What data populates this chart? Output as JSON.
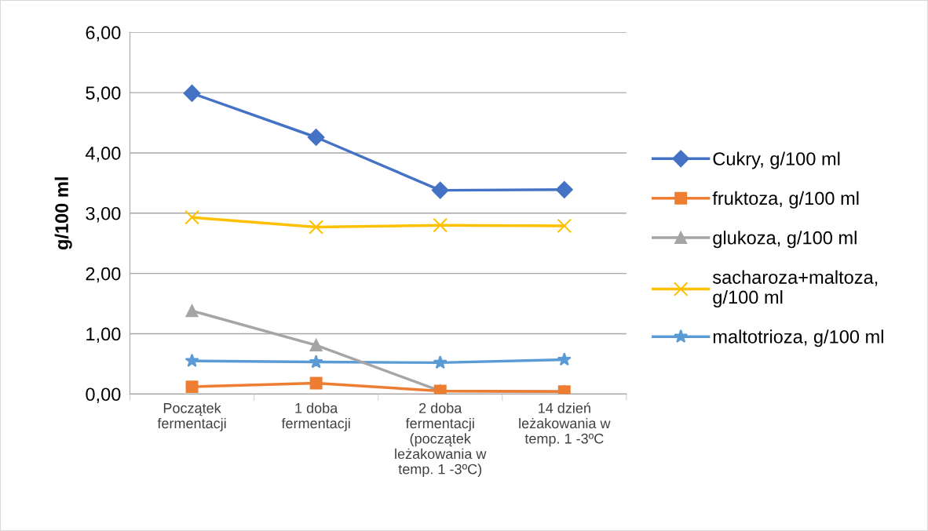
{
  "chart_data": {
    "type": "line",
    "ylabel": "g/100 ml",
    "categories": [
      "Początek\nfermentacji",
      "1 doba\nfermentacji",
      "2 doba\nfermentacji\n(początek\nleżakowania w\ntemp. 1 -3ºC)",
      "14 dzień\nleżakowania w\ntemp. 1 -3ºC"
    ],
    "series": [
      {
        "name": "Cukry, g/100 ml",
        "color": "#4472c4",
        "marker": "diamond",
        "values": [
          4.99,
          4.26,
          3.38,
          3.39
        ]
      },
      {
        "name": "fruktoza, g/100 ml",
        "color": "#ed7d31",
        "marker": "square",
        "values": [
          0.12,
          0.18,
          0.05,
          0.04
        ]
      },
      {
        "name": "glukoza, g/100 ml",
        "color": "#a5a5a5",
        "marker": "triangle",
        "values": [
          1.38,
          0.81,
          0.05,
          0.04
        ]
      },
      {
        "name": "sacharoza+maltoza,\ng/100 ml",
        "color": "#ffc000",
        "marker": "cross",
        "values": [
          2.93,
          2.77,
          2.8,
          2.79
        ]
      },
      {
        "name": "maltotrioza, g/100 ml",
        "color": "#5b9bd5",
        "marker": "star",
        "values": [
          0.55,
          0.53,
          0.52,
          0.57
        ]
      }
    ],
    "ylim": [
      0,
      6
    ],
    "yticks": [
      {
        "value": 0,
        "label": "0,00"
      },
      {
        "value": 1,
        "label": "1,00"
      },
      {
        "value": 2,
        "label": "2,00"
      },
      {
        "value": 3,
        "label": "3,00"
      },
      {
        "value": 4,
        "label": "4,00"
      },
      {
        "value": 5,
        "label": "5,00"
      },
      {
        "value": 6,
        "label": "6,00"
      }
    ],
    "grid": "y",
    "legend": "right"
  }
}
